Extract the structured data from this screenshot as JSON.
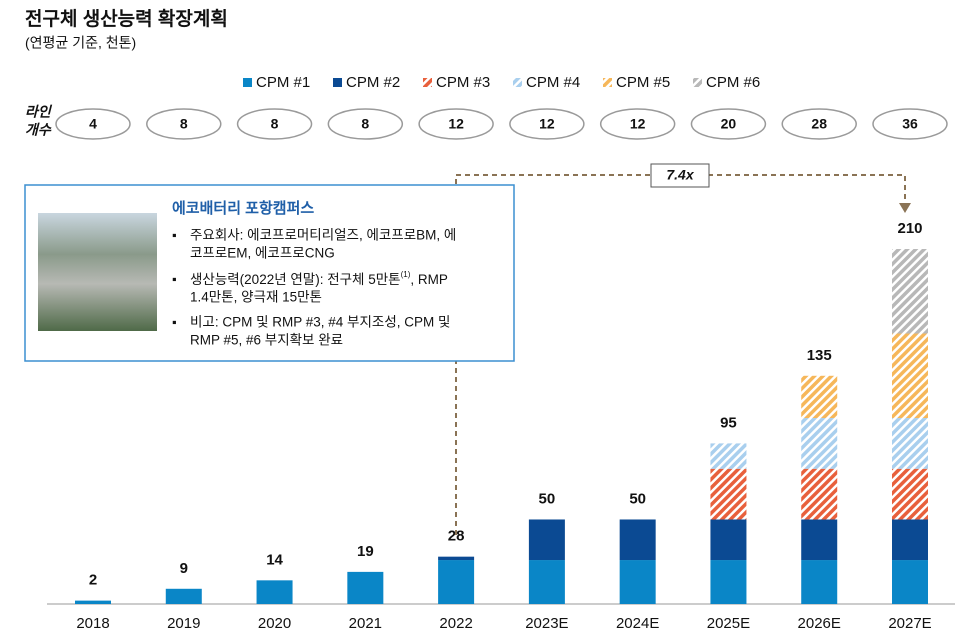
{
  "chart_data": {
    "type": "stacked_bar",
    "title": "전구체 생산능력 확장계획",
    "subtitle": "(연평균 기준, 천톤)",
    "categories": [
      "2018",
      "2019",
      "2020",
      "2021",
      "2022",
      "2023E",
      "2024E",
      "2025E",
      "2026E",
      "2027E"
    ],
    "series": [
      {
        "name": "CPM #1",
        "color": "#0a86c7",
        "pattern": "solid",
        "values": [
          2,
          9,
          14,
          19,
          26,
          26,
          26,
          26,
          26,
          26
        ]
      },
      {
        "name": "CPM #2",
        "color": "#0b4a93",
        "pattern": "solid",
        "values": [
          null,
          null,
          null,
          null,
          2,
          24,
          24,
          24,
          24,
          24
        ]
      },
      {
        "name": "CPM #3",
        "color": "#e8603c",
        "pattern": "hatch",
        "values": [
          null,
          null,
          null,
          null,
          null,
          null,
          null,
          30,
          30,
          30
        ]
      },
      {
        "name": "CPM #4",
        "color": "#a9cfee",
        "pattern": "hatch",
        "values": [
          null,
          null,
          null,
          null,
          null,
          null,
          null,
          15,
          30,
          30
        ]
      },
      {
        "name": "CPM #5",
        "color": "#f6b75a",
        "pattern": "hatch",
        "values": [
          null,
          null,
          null,
          null,
          null,
          null,
          null,
          null,
          25,
          50
        ]
      },
      {
        "name": "CPM #6",
        "color": "#b8b8b8",
        "pattern": "hatch",
        "values": [
          null,
          null,
          null,
          null,
          null,
          null,
          null,
          null,
          null,
          50
        ]
      }
    ],
    "totals": [
      2,
      9,
      14,
      19,
      28,
      50,
      50,
      95,
      135,
      210
    ],
    "line_count_label": [
      "라인",
      "개수"
    ],
    "line_counts": [
      4,
      8,
      8,
      8,
      12,
      12,
      12,
      20,
      28,
      36
    ],
    "growth_annotation": "7.4x",
    "inset": {
      "title": "에코배터리 포항캠퍼스",
      "bullet1": [
        "주요회사: 에코프로머티리얼즈, 에코프로BM, 에",
        "코프로EM, 에코프로CNG"
      ],
      "bullet2": {
        "line1": "생산능력(2022년 연말): 전구체 5만톤",
        "sup": "(1)",
        "line1_end": ", RMP",
        "line2": "1.4만톤, 양극재 15만톤"
      },
      "bullet3": [
        "비고: CPM 및 RMP #3, #4 부지조성, CPM 및",
        "RMP #5, #6 부지확보 완료"
      ]
    }
  }
}
